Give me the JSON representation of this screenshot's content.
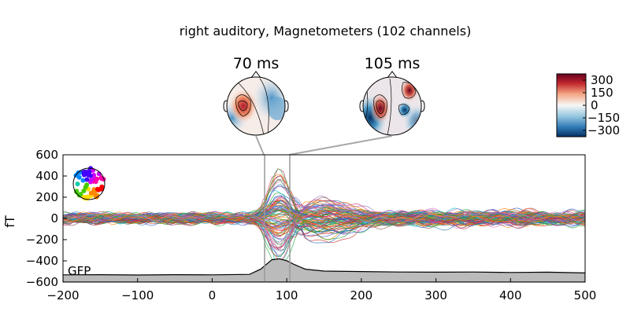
{
  "chart_data": {
    "type": "line",
    "title": "right auditory, Magnetometers (102 channels)",
    "ylabel": "fT",
    "xlabel": "",
    "xlim": [
      -200,
      500
    ],
    "ylim": [
      -600,
      600
    ],
    "xticks": [
      "−200",
      "−100",
      "0",
      "100",
      "200",
      "300",
      "400",
      "500"
    ],
    "yticks": [
      "600",
      "400",
      "200",
      "0",
      "−200",
      "−400",
      "−600"
    ],
    "grid": false,
    "time_markers_ms": [
      70,
      105
    ],
    "topomaps": [
      {
        "label": "70 ms",
        "time_ms": 70
      },
      {
        "label": "105 ms",
        "time_ms": 105
      }
    ],
    "colorbar": {
      "ticks": [
        "300",
        "150",
        "0",
        "−150",
        "−300"
      ],
      "range": [
        -300,
        300
      ],
      "colormap": "RdBu_r"
    },
    "gfp": {
      "label": "GFP",
      "x": [
        -200,
        -150,
        -100,
        -50,
        0,
        50,
        65,
        80,
        90,
        100,
        110,
        125,
        150,
        200,
        250,
        300,
        350,
        400,
        450,
        500
      ],
      "y": [
        10,
        12,
        8,
        12,
        10,
        15,
        70,
        170,
        180,
        160,
        120,
        70,
        50,
        45,
        40,
        38,
        40,
        35,
        38,
        30
      ]
    },
    "series_summary": "102 butterfly traces, peak amplitude ~500 fT near 90 ms"
  }
}
